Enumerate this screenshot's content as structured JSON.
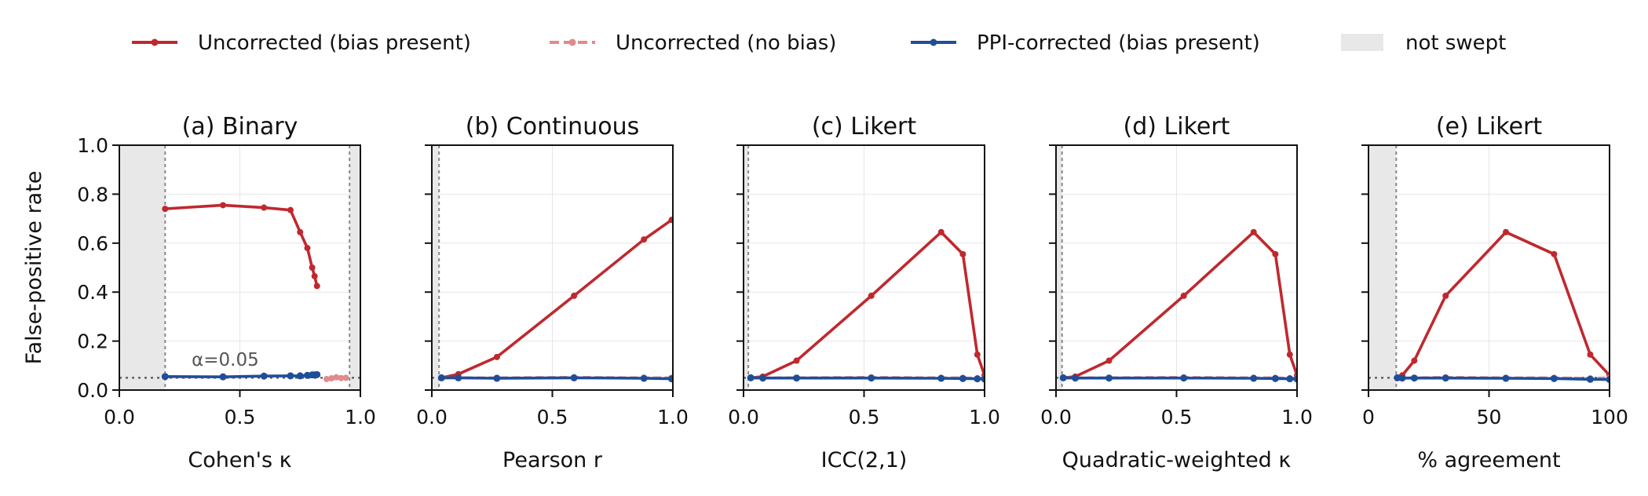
{
  "legend": {
    "items": [
      {
        "label": "Uncorrected (bias present)",
        "style": "solid",
        "color": "#c0282e"
      },
      {
        "label": "Uncorrected (no bias)",
        "style": "dashed",
        "color": "#e08a8d"
      },
      {
        "label": "PPI-corrected (bias present)",
        "style": "solid",
        "color": "#1f4e99"
      },
      {
        "label": "not swept",
        "style": "patch",
        "color": "#e8e8e8"
      }
    ]
  },
  "colors": {
    "uncorrected_bias": "#c0282e",
    "uncorrected_nobias": "#e08a8d",
    "ppi": "#1f4e99",
    "not_swept": "#e8e8e8",
    "grid": "#e6e6e6",
    "reference": "#555555"
  },
  "chart_data": [
    {
      "type": "line",
      "title": "(a) Binary",
      "xlabel": "Cohen's κ",
      "ylabel": "False-positive rate",
      "xlim": [
        0,
        1
      ],
      "ylim": [
        0,
        1
      ],
      "xticks": [
        "0.0",
        "0.5",
        "1.0"
      ],
      "yticks": [
        "0.0",
        "0.2",
        "0.4",
        "0.6",
        "0.8",
        "1.0"
      ],
      "grid": true,
      "alpha_line": 0.05,
      "alpha_label": "α=0.05",
      "not_swept": [
        [
          0,
          0.19
        ],
        [
          0.955,
          1
        ]
      ],
      "series": [
        {
          "key": "uncorrected_bias",
          "name": "Uncorrected (bias present)",
          "x": [
            0.19,
            0.43,
            0.6,
            0.71,
            0.75,
            0.78,
            0.8,
            0.81,
            0.82
          ],
          "y": [
            0.74,
            0.755,
            0.745,
            0.735,
            0.645,
            0.58,
            0.5,
            0.465,
            0.425
          ]
        },
        {
          "key": "uncorrected_nobias",
          "name": "Uncorrected (no bias)",
          "x": [
            0.86,
            0.88,
            0.9,
            0.92,
            0.94
          ],
          "y": [
            0.045,
            0.048,
            0.052,
            0.049,
            0.05
          ]
        },
        {
          "key": "ppi",
          "name": "PPI-corrected (bias present)",
          "x": [
            0.19,
            0.43,
            0.6,
            0.71,
            0.75,
            0.78,
            0.8,
            0.81,
            0.82
          ],
          "y": [
            0.055,
            0.054,
            0.057,
            0.058,
            0.058,
            0.06,
            0.062,
            0.062,
            0.063
          ]
        }
      ]
    },
    {
      "type": "line",
      "title": "(b) Continuous",
      "xlabel": "Pearson r",
      "xlim": [
        0,
        1
      ],
      "ylim": [
        0,
        1
      ],
      "xticks": [
        "0.0",
        "0.5",
        "1.0"
      ],
      "grid": true,
      "alpha_line": 0.05,
      "not_swept": [
        [
          0,
          0.03
        ]
      ],
      "series": [
        {
          "key": "uncorrected_bias",
          "name": "Uncorrected (bias present)",
          "x": [
            0.04,
            0.11,
            0.27,
            0.59,
            0.88,
            0.995
          ],
          "y": [
            0.05,
            0.065,
            0.135,
            0.385,
            0.615,
            0.695
          ]
        },
        {
          "key": "uncorrected_nobias",
          "name": "Uncorrected (no bias)",
          "x": [
            0.04,
            0.11,
            0.27,
            0.59,
            0.88,
            0.995
          ],
          "y": [
            0.05,
            0.05,
            0.05,
            0.052,
            0.05,
            0.05
          ]
        },
        {
          "key": "ppi",
          "name": "PPI-corrected (bias present)",
          "x": [
            0.04,
            0.11,
            0.27,
            0.59,
            0.88,
            0.995
          ],
          "y": [
            0.05,
            0.05,
            0.048,
            0.05,
            0.048,
            0.046
          ]
        }
      ]
    },
    {
      "type": "line",
      "title": "(c) Likert",
      "xlabel": "ICC(2,1)",
      "xlim": [
        0,
        1
      ],
      "ylim": [
        0,
        1
      ],
      "xticks": [
        "0.0",
        "0.5",
        "1.0"
      ],
      "grid": true,
      "alpha_line": 0.05,
      "not_swept": [
        [
          0,
          0.02
        ]
      ],
      "series": [
        {
          "key": "uncorrected_bias",
          "name": "Uncorrected (bias present)",
          "x": [
            0.03,
            0.08,
            0.22,
            0.53,
            0.82,
            0.91,
            0.97,
            1.0
          ],
          "y": [
            0.05,
            0.055,
            0.12,
            0.385,
            0.645,
            0.555,
            0.145,
            0.06
          ]
        },
        {
          "key": "uncorrected_nobias",
          "name": "Uncorrected (no bias)",
          "x": [
            0.03,
            0.08,
            0.22,
            0.53,
            0.82,
            0.91,
            0.97,
            1.0
          ],
          "y": [
            0.05,
            0.05,
            0.05,
            0.052,
            0.05,
            0.05,
            0.048,
            0.048
          ]
        },
        {
          "key": "ppi",
          "name": "PPI-corrected (bias present)",
          "x": [
            0.03,
            0.08,
            0.22,
            0.53,
            0.82,
            0.91,
            0.97,
            1.0
          ],
          "y": [
            0.05,
            0.049,
            0.049,
            0.049,
            0.048,
            0.047,
            0.046,
            0.045
          ]
        }
      ]
    },
    {
      "type": "line",
      "title": "(d) Likert",
      "xlabel": "Quadratic-weighted κ",
      "xlim": [
        0,
        1
      ],
      "ylim": [
        0,
        1
      ],
      "xticks": [
        "0.0",
        "0.5",
        "1.0"
      ],
      "grid": true,
      "alpha_line": 0.05,
      "not_swept": [
        [
          0,
          0.025
        ]
      ],
      "series": [
        {
          "key": "uncorrected_bias",
          "name": "Uncorrected (bias present)",
          "x": [
            0.03,
            0.08,
            0.22,
            0.53,
            0.82,
            0.91,
            0.97,
            1.0
          ],
          "y": [
            0.05,
            0.055,
            0.12,
            0.385,
            0.645,
            0.555,
            0.145,
            0.06
          ]
        },
        {
          "key": "uncorrected_nobias",
          "name": "Uncorrected (no bias)",
          "x": [
            0.03,
            0.08,
            0.22,
            0.53,
            0.82,
            0.91,
            0.97,
            1.0
          ],
          "y": [
            0.05,
            0.05,
            0.05,
            0.052,
            0.05,
            0.05,
            0.048,
            0.048
          ]
        },
        {
          "key": "ppi",
          "name": "PPI-corrected (bias present)",
          "x": [
            0.03,
            0.08,
            0.22,
            0.53,
            0.82,
            0.91,
            0.97,
            1.0
          ],
          "y": [
            0.05,
            0.049,
            0.049,
            0.049,
            0.048,
            0.047,
            0.046,
            0.045
          ]
        }
      ]
    },
    {
      "type": "line",
      "title": "(e) Likert",
      "xlabel": "% agreement",
      "xlim": [
        0,
        100
      ],
      "ylim": [
        0,
        1
      ],
      "xticks": [
        "0",
        "50",
        "100"
      ],
      "grid": true,
      "alpha_line": 0.05,
      "not_swept": [
        [
          0,
          11.5
        ]
      ],
      "series": [
        {
          "key": "uncorrected_bias",
          "name": "Uncorrected (bias present)",
          "x": [
            12,
            14,
            19,
            32,
            57,
            77,
            92,
            100
          ],
          "y": [
            0.05,
            0.06,
            0.12,
            0.385,
            0.645,
            0.555,
            0.145,
            0.06
          ]
        },
        {
          "key": "uncorrected_nobias",
          "name": "Uncorrected (no bias)",
          "x": [
            12,
            14,
            19,
            32,
            57,
            77,
            92,
            100
          ],
          "y": [
            0.05,
            0.05,
            0.05,
            0.052,
            0.05,
            0.05,
            0.048,
            0.05
          ]
        },
        {
          "key": "ppi",
          "name": "PPI-corrected (bias present)",
          "x": [
            12,
            14,
            19,
            32,
            57,
            77,
            92,
            100
          ],
          "y": [
            0.05,
            0.049,
            0.049,
            0.049,
            0.048,
            0.047,
            0.044,
            0.043
          ]
        }
      ]
    }
  ]
}
